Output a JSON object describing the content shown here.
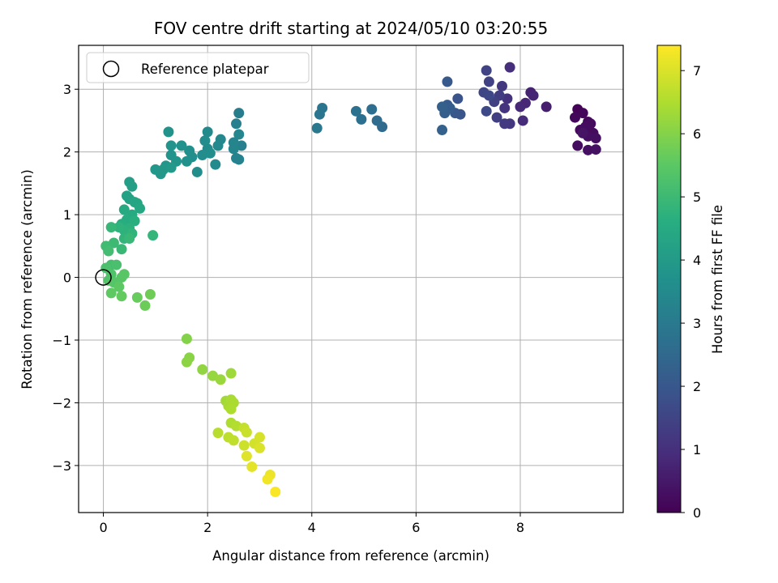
{
  "chart_data": {
    "type": "scatter",
    "title": "FOV centre drift starting at 2024/05/10 03:20:55",
    "xlabel": "Angular distance from reference (arcmin)",
    "ylabel": "Rotation from reference (arcmin)",
    "xlim": [
      -0.475,
      9.975
    ],
    "ylim": [
      -3.75,
      3.7
    ],
    "xticks": [
      0,
      2,
      4,
      6,
      8
    ],
    "yticks": [
      -3,
      -2,
      -1,
      0,
      1,
      2,
      3
    ],
    "grid": true,
    "colormap": "viridis",
    "legend": {
      "location": "upper left",
      "entries": [
        "Reference platepar"
      ]
    },
    "reference_point": {
      "name": "Reference platepar",
      "x": 0,
      "y": 0,
      "marker": "open-circle"
    },
    "colorbar": {
      "label": "Hours from first FF file",
      "min": 0,
      "max": 7.4,
      "ticks": [
        0,
        1,
        2,
        3,
        4,
        5,
        6,
        7
      ]
    },
    "points": [
      {
        "x": 9.1,
        "y": 2.68,
        "c": 0.05
      },
      {
        "x": 9.2,
        "y": 2.62,
        "c": 0.1
      },
      {
        "x": 9.05,
        "y": 2.55,
        "c": 0.15
      },
      {
        "x": 9.3,
        "y": 2.48,
        "c": 0.12
      },
      {
        "x": 9.35,
        "y": 2.45,
        "c": 0.2
      },
      {
        "x": 9.15,
        "y": 2.35,
        "c": 0.18
      },
      {
        "x": 9.25,
        "y": 2.4,
        "c": 0.25
      },
      {
        "x": 9.4,
        "y": 2.3,
        "c": 0.22
      },
      {
        "x": 9.3,
        "y": 2.25,
        "c": 0.28
      },
      {
        "x": 9.45,
        "y": 2.22,
        "c": 0.3
      },
      {
        "x": 9.1,
        "y": 2.1,
        "c": 0.26
      },
      {
        "x": 9.3,
        "y": 2.03,
        "c": 0.32
      },
      {
        "x": 9.45,
        "y": 2.04,
        "c": 0.35
      },
      {
        "x": 9.2,
        "y": 2.3,
        "c": 0.4
      },
      {
        "x": 8.5,
        "y": 2.72,
        "c": 0.6
      },
      {
        "x": 8.2,
        "y": 2.95,
        "c": 0.7
      },
      {
        "x": 8.25,
        "y": 2.9,
        "c": 0.75
      },
      {
        "x": 8.1,
        "y": 2.78,
        "c": 0.8
      },
      {
        "x": 8.0,
        "y": 2.72,
        "c": 0.85
      },
      {
        "x": 8.05,
        "y": 2.5,
        "c": 0.9
      },
      {
        "x": 7.8,
        "y": 3.35,
        "c": 1.0
      },
      {
        "x": 7.75,
        "y": 2.85,
        "c": 1.05
      },
      {
        "x": 7.7,
        "y": 2.7,
        "c": 1.1
      },
      {
        "x": 7.8,
        "y": 2.45,
        "c": 1.15
      },
      {
        "x": 7.65,
        "y": 3.05,
        "c": 1.2
      },
      {
        "x": 7.7,
        "y": 2.45,
        "c": 1.25
      },
      {
        "x": 7.6,
        "y": 2.9,
        "c": 1.3
      },
      {
        "x": 7.55,
        "y": 2.55,
        "c": 1.35
      },
      {
        "x": 7.5,
        "y": 2.8,
        "c": 1.4
      },
      {
        "x": 7.4,
        "y": 3.12,
        "c": 1.45
      },
      {
        "x": 7.35,
        "y": 3.3,
        "c": 1.5
      },
      {
        "x": 7.3,
        "y": 2.95,
        "c": 1.55
      },
      {
        "x": 7.4,
        "y": 2.9,
        "c": 1.6
      },
      {
        "x": 7.35,
        "y": 2.65,
        "c": 1.65
      },
      {
        "x": 6.8,
        "y": 2.85,
        "c": 1.9
      },
      {
        "x": 6.85,
        "y": 2.6,
        "c": 1.95
      },
      {
        "x": 6.75,
        "y": 2.62,
        "c": 2.0
      },
      {
        "x": 6.6,
        "y": 3.12,
        "c": 2.05
      },
      {
        "x": 6.6,
        "y": 2.75,
        "c": 2.1
      },
      {
        "x": 6.65,
        "y": 2.7,
        "c": 2.15
      },
      {
        "x": 6.55,
        "y": 2.62,
        "c": 2.2
      },
      {
        "x": 6.5,
        "y": 2.72,
        "c": 2.25
      },
      {
        "x": 6.5,
        "y": 2.35,
        "c": 2.3
      },
      {
        "x": 5.35,
        "y": 2.4,
        "c": 2.55
      },
      {
        "x": 5.25,
        "y": 2.5,
        "c": 2.6
      },
      {
        "x": 5.15,
        "y": 2.68,
        "c": 2.65
      },
      {
        "x": 4.95,
        "y": 2.52,
        "c": 2.7
      },
      {
        "x": 4.85,
        "y": 2.65,
        "c": 2.75
      },
      {
        "x": 4.2,
        "y": 2.7,
        "c": 2.85
      },
      {
        "x": 4.15,
        "y": 2.6,
        "c": 2.9
      },
      {
        "x": 4.1,
        "y": 2.38,
        "c": 2.95
      },
      {
        "x": 2.6,
        "y": 2.62,
        "c": 3.1
      },
      {
        "x": 2.55,
        "y": 2.45,
        "c": 3.15
      },
      {
        "x": 2.65,
        "y": 2.1,
        "c": 3.2
      },
      {
        "x": 2.6,
        "y": 1.88,
        "c": 3.25
      },
      {
        "x": 2.55,
        "y": 1.9,
        "c": 3.28
      },
      {
        "x": 2.5,
        "y": 2.15,
        "c": 3.3
      },
      {
        "x": 2.5,
        "y": 2.05,
        "c": 3.35
      },
      {
        "x": 2.6,
        "y": 2.28,
        "c": 3.38
      },
      {
        "x": 2.25,
        "y": 2.2,
        "c": 3.42
      },
      {
        "x": 2.2,
        "y": 2.1,
        "c": 3.45
      },
      {
        "x": 2.15,
        "y": 1.8,
        "c": 3.48
      },
      {
        "x": 2.0,
        "y": 2.32,
        "c": 3.5
      },
      {
        "x": 2.0,
        "y": 2.05,
        "c": 3.52
      },
      {
        "x": 1.95,
        "y": 2.18,
        "c": 3.55
      },
      {
        "x": 1.9,
        "y": 1.95,
        "c": 3.58
      },
      {
        "x": 1.8,
        "y": 1.68,
        "c": 3.6
      },
      {
        "x": 2.05,
        "y": 1.98,
        "c": 3.62
      },
      {
        "x": 1.7,
        "y": 1.92,
        "c": 3.65
      },
      {
        "x": 1.65,
        "y": 2.02,
        "c": 3.68
      },
      {
        "x": 1.6,
        "y": 1.85,
        "c": 3.7
      },
      {
        "x": 1.5,
        "y": 2.1,
        "c": 3.72
      },
      {
        "x": 1.25,
        "y": 2.32,
        "c": 3.75
      },
      {
        "x": 1.3,
        "y": 2.1,
        "c": 3.78
      },
      {
        "x": 1.3,
        "y": 1.95,
        "c": 3.8
      },
      {
        "x": 1.4,
        "y": 1.85,
        "c": 3.82
      },
      {
        "x": 1.2,
        "y": 1.78,
        "c": 3.85
      },
      {
        "x": 1.1,
        "y": 1.65,
        "c": 3.88
      },
      {
        "x": 1.0,
        "y": 1.72,
        "c": 3.9
      },
      {
        "x": 1.15,
        "y": 1.72,
        "c": 3.92
      },
      {
        "x": 1.3,
        "y": 1.75,
        "c": 3.94
      },
      {
        "x": 0.5,
        "y": 1.52,
        "c": 4.1
      },
      {
        "x": 0.55,
        "y": 1.45,
        "c": 4.15
      },
      {
        "x": 0.45,
        "y": 1.3,
        "c": 4.2
      },
      {
        "x": 0.5,
        "y": 1.25,
        "c": 4.25
      },
      {
        "x": 0.6,
        "y": 1.2,
        "c": 4.3
      },
      {
        "x": 0.65,
        "y": 1.18,
        "c": 4.35
      },
      {
        "x": 0.7,
        "y": 1.1,
        "c": 4.4
      },
      {
        "x": 0.4,
        "y": 1.08,
        "c": 4.45
      },
      {
        "x": 0.55,
        "y": 1.0,
        "c": 4.5
      },
      {
        "x": 0.45,
        "y": 0.92,
        "c": 4.55
      },
      {
        "x": 0.35,
        "y": 0.85,
        "c": 4.6
      },
      {
        "x": 0.6,
        "y": 0.9,
        "c": 4.65
      },
      {
        "x": 0.5,
        "y": 0.78,
        "c": 4.7
      },
      {
        "x": 0.4,
        "y": 0.75,
        "c": 4.72
      },
      {
        "x": 0.3,
        "y": 0.8,
        "c": 4.75
      },
      {
        "x": 0.55,
        "y": 0.7,
        "c": 4.78
      },
      {
        "x": 0.4,
        "y": 0.62,
        "c": 4.8
      },
      {
        "x": 0.95,
        "y": 0.67,
        "c": 4.85
      },
      {
        "x": 0.15,
        "y": 0.8,
        "c": 4.9
      },
      {
        "x": 0.5,
        "y": 0.62,
        "c": 4.92
      },
      {
        "x": 0.35,
        "y": 0.45,
        "c": 4.95
      },
      {
        "x": 0.2,
        "y": 0.55,
        "c": 5.0
      },
      {
        "x": 0.05,
        "y": 0.5,
        "c": 5.05
      },
      {
        "x": 0.1,
        "y": 0.42,
        "c": 5.1
      },
      {
        "x": 0.15,
        "y": 0.2,
        "c": 5.15
      },
      {
        "x": 0.25,
        "y": 0.2,
        "c": 5.2
      },
      {
        "x": 0.05,
        "y": 0.15,
        "c": 5.25
      },
      {
        "x": 0.15,
        "y": 0.05,
        "c": 5.3
      },
      {
        "x": 0.1,
        "y": -0.05,
        "c": 5.35
      },
      {
        "x": 0.2,
        "y": -0.08,
        "c": 5.4
      },
      {
        "x": 0.35,
        "y": 0.0,
        "c": 5.42
      },
      {
        "x": 0.4,
        "y": 0.05,
        "c": 5.45
      },
      {
        "x": 0.3,
        "y": -0.15,
        "c": 5.5
      },
      {
        "x": 0.15,
        "y": -0.25,
        "c": 5.55
      },
      {
        "x": 0.35,
        "y": -0.3,
        "c": 5.6
      },
      {
        "x": 0.65,
        "y": -0.32,
        "c": 5.65
      },
      {
        "x": 0.8,
        "y": -0.45,
        "c": 5.7
      },
      {
        "x": 0.9,
        "y": -0.27,
        "c": 5.75
      },
      {
        "x": 1.6,
        "y": -0.98,
        "c": 6.0
      },
      {
        "x": 1.65,
        "y": -1.28,
        "c": 6.05
      },
      {
        "x": 1.6,
        "y": -1.35,
        "c": 6.1
      },
      {
        "x": 1.9,
        "y": -1.47,
        "c": 6.15
      },
      {
        "x": 2.1,
        "y": -1.57,
        "c": 6.2
      },
      {
        "x": 2.25,
        "y": -1.63,
        "c": 6.25
      },
      {
        "x": 2.45,
        "y": -1.53,
        "c": 6.3
      },
      {
        "x": 2.35,
        "y": -1.97,
        "c": 6.35
      },
      {
        "x": 2.4,
        "y": -2.05,
        "c": 6.4
      },
      {
        "x": 2.45,
        "y": -1.95,
        "c": 6.42
      },
      {
        "x": 2.5,
        "y": -2.0,
        "c": 6.45
      },
      {
        "x": 2.45,
        "y": -2.1,
        "c": 6.48
      },
      {
        "x": 2.45,
        "y": -2.32,
        "c": 6.5
      },
      {
        "x": 2.55,
        "y": -2.37,
        "c": 6.55
      },
      {
        "x": 2.2,
        "y": -2.48,
        "c": 6.6
      },
      {
        "x": 2.4,
        "y": -2.55,
        "c": 6.65
      },
      {
        "x": 2.5,
        "y": -2.6,
        "c": 6.7
      },
      {
        "x": 2.7,
        "y": -2.4,
        "c": 6.75
      },
      {
        "x": 2.75,
        "y": -2.47,
        "c": 6.8
      },
      {
        "x": 2.7,
        "y": -2.68,
        "c": 6.85
      },
      {
        "x": 2.9,
        "y": -2.65,
        "c": 6.9
      },
      {
        "x": 3.0,
        "y": -2.55,
        "c": 6.95
      },
      {
        "x": 3.0,
        "y": -2.72,
        "c": 7.0
      },
      {
        "x": 2.75,
        "y": -2.85,
        "c": 7.05
      },
      {
        "x": 2.85,
        "y": -3.02,
        "c": 7.1
      },
      {
        "x": 3.2,
        "y": -3.15,
        "c": 7.2
      },
      {
        "x": 3.15,
        "y": -3.22,
        "c": 7.25
      },
      {
        "x": 3.3,
        "y": -3.42,
        "c": 7.35
      }
    ]
  }
}
